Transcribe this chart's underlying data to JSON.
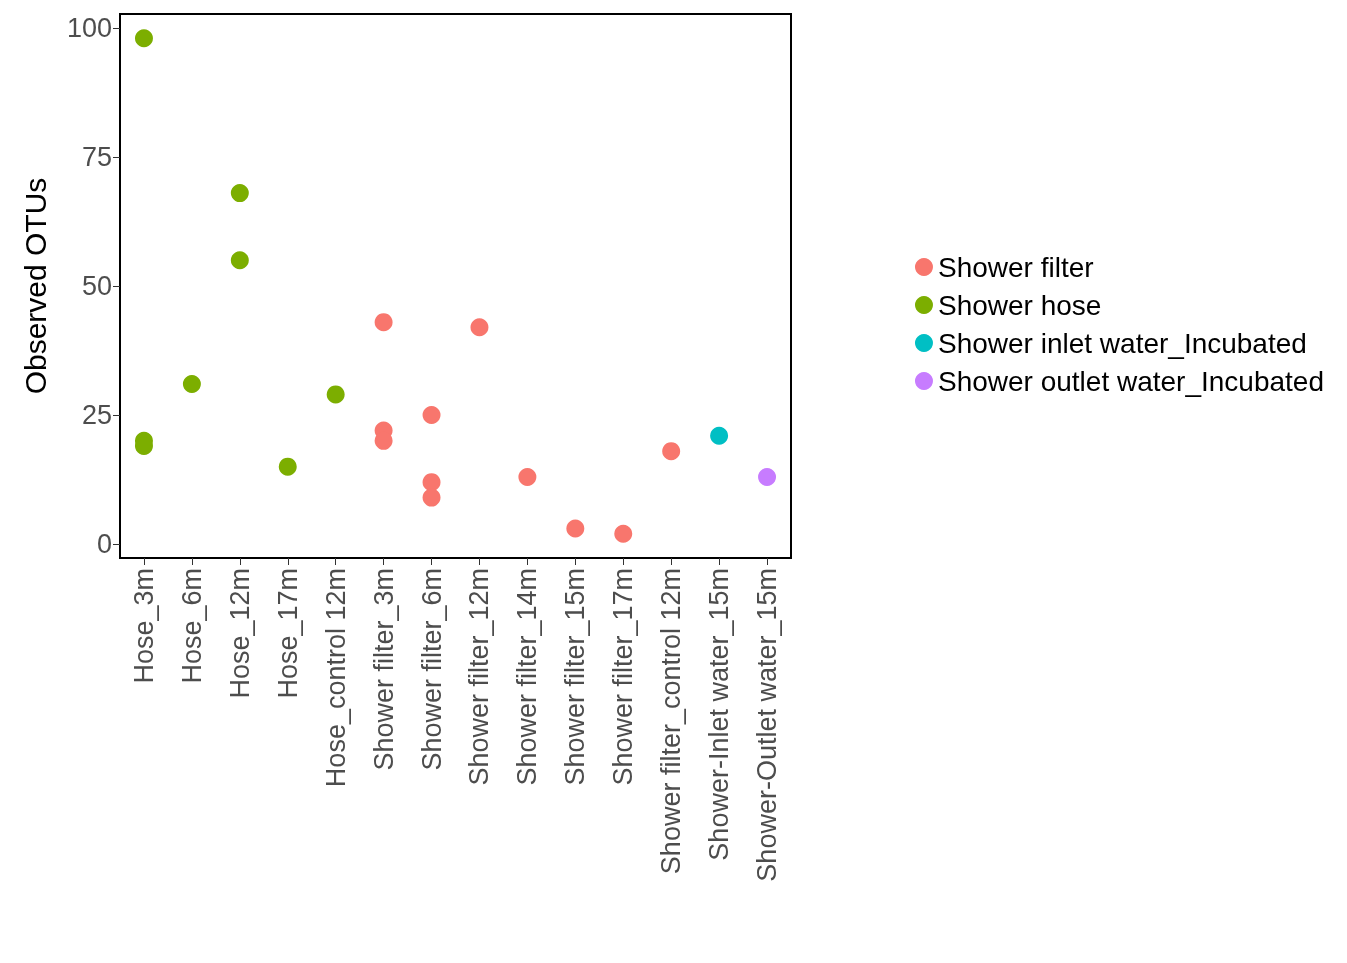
{
  "chart_data": {
    "type": "scatter",
    "ylabel": "Observed OTUs",
    "categories": [
      "Hose_3m",
      "Hose_6m",
      "Hose_12m",
      "Hose_17m",
      "Hose_control 12m",
      "Shower filter_3m",
      "Shower filter_6m",
      "Shower filter_12m",
      "Shower filter_14m",
      "Shower filter_15m",
      "Shower filter_17m",
      "Shower filter_control 12m",
      "Shower-Inlet water_15m",
      "Shower-Outlet water_15m"
    ],
    "series": [
      {
        "name": "Shower filter",
        "color": "#f8766d",
        "x": [
          "Shower filter_3m",
          "Shower filter_3m",
          "Shower filter_3m",
          "Shower filter_6m",
          "Shower filter_6m",
          "Shower filter_6m",
          "Shower filter_12m",
          "Shower filter_14m",
          "Shower filter_15m",
          "Shower filter_17m",
          "Shower filter_control 12m"
        ],
        "values": [
          43,
          22,
          20,
          25,
          12,
          9,
          42,
          13,
          3,
          2,
          18
        ]
      },
      {
        "name": "Shower hose",
        "color": "#7cae00",
        "x": [
          "Hose_3m",
          "Hose_3m",
          "Hose_3m",
          "Hose_6m",
          "Hose_12m",
          "Hose_12m",
          "Hose_17m",
          "Hose_control 12m"
        ],
        "values": [
          98,
          20,
          19,
          31,
          68,
          55,
          15,
          29
        ]
      },
      {
        "name": "Shower inlet water_Incubated",
        "color": "#00bfc4",
        "x": [
          "Shower-Inlet water_15m"
        ],
        "values": [
          21
        ]
      },
      {
        "name": "Shower outlet water_Incubated",
        "color": "#c77cff",
        "x": [
          "Shower-Outlet water_15m"
        ],
        "values": [
          13
        ]
      }
    ],
    "ylim": [
      -2.7,
      102.7
    ],
    "yticks": [
      0,
      25,
      50,
      75,
      100
    ],
    "grid": false,
    "legend": "right",
    "marker": "circle"
  }
}
